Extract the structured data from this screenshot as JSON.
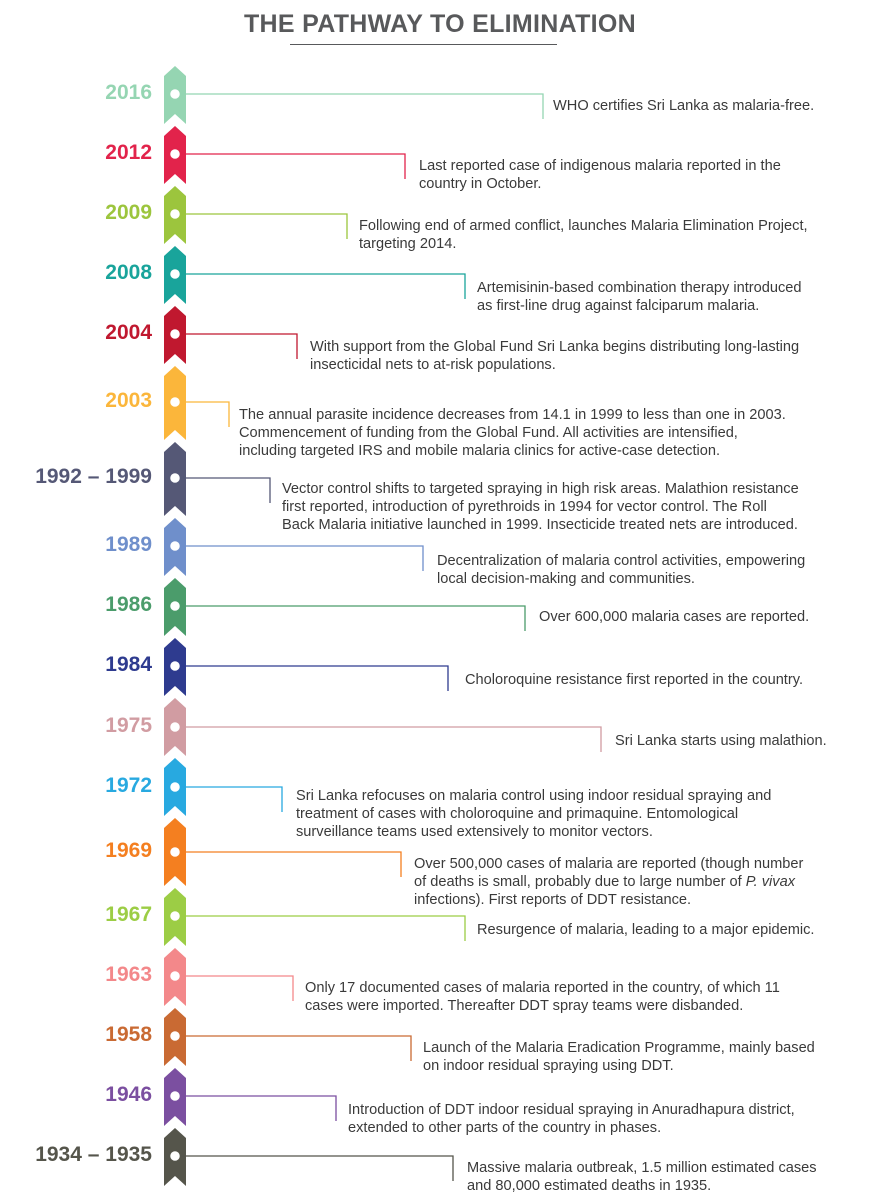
{
  "title": "THE PATHWAY TO ELIMINATION",
  "events": [
    {
      "year": "2016",
      "color": "#95d5b2",
      "lines": [
        "WHO certifies Sri Lanka as malaria-free."
      ]
    },
    {
      "year": "2012",
      "color": "#e2234b",
      "lines": [
        "Last reported case of indigenous malaria reported in the",
        "country in October."
      ]
    },
    {
      "year": "2009",
      "color": "#9cc53d",
      "lines": [
        "Following end of armed conflict, launches Malaria Elimination Project,",
        "targeting 2014."
      ]
    },
    {
      "year": "2008",
      "color": "#19a49b",
      "lines": [
        "Artemisinin-based combination therapy introduced",
        "as first-line drug against falciparum malaria."
      ]
    },
    {
      "year": "2004",
      "color": "#c0182f",
      "lines": [
        "With support from the Global Fund Sri Lanka begins distributing long-lasting",
        "insecticidal nets to at-risk populations."
      ]
    },
    {
      "year": "2003",
      "color": "#fbb63b",
      "lines": [
        "The annual parasite incidence decreases from 14.1 in 1999 to less than one in 2003.",
        "Commencement of funding from the Global Fund. All activities are intensified,",
        "including targeted IRS and mobile malaria clinics for active-case detection."
      ]
    },
    {
      "year": "1992 – 1999",
      "color": "#555876",
      "lines": [
        "Vector control shifts to targeted spraying in high risk areas. Malathion resistance",
        "first reported, introduction of pyrethroids in 1994 for vector control. The Roll",
        "Back Malaria initiative launched in 1999. Insecticide treated nets are introduced."
      ]
    },
    {
      "year": "1989",
      "color": "#6f8fcb",
      "lines": [
        "Decentralization of malaria control activities, empowering",
        "local decision-making and communities."
      ]
    },
    {
      "year": "1986",
      "color": "#4b9c6b",
      "lines": [
        "Over 600,000 malaria cases are reported."
      ]
    },
    {
      "year": "1984",
      "color": "#2e3b8f",
      "lines": [
        "Choloroquine resistance first reported in the country."
      ]
    },
    {
      "year": "1975",
      "color": "#d19ca2",
      "lines": [
        "Sri Lanka starts using malathion."
      ]
    },
    {
      "year": "1972",
      "color": "#28a9e0",
      "lines": [
        "Sri Lanka refocuses on malaria control using indoor residual spraying and",
        "treatment of cases with choloroquine and primaquine. Entomological",
        "surveillance teams used extensively to monitor vectors."
      ]
    },
    {
      "year": "1969",
      "color": "#f47f20",
      "lines": [
        "Over 500,000 cases of malaria are reported (though number",
        "of deaths is small, probably due to large number of {{P. vivax}}",
        "infections). First reports of DDT resistance."
      ]
    },
    {
      "year": "1967",
      "color": "#9ccd45",
      "lines": [
        "Resurgence of malaria, leading to a major epidemic."
      ]
    },
    {
      "year": "1963",
      "color": "#f3888a",
      "lines": [
        "Only 17 documented cases of malaria reported in the country, of which 11",
        "cases were imported. Thereafter DDT spray teams were disbanded."
      ]
    },
    {
      "year": "1958",
      "color": "#c96a33",
      "lines": [
        "Launch of the Malaria Eradication Programme, mainly based",
        "on indoor residual spraying using DDT."
      ]
    },
    {
      "year": "1946",
      "color": "#7b4fa0",
      "lines": [
        "Introduction of DDT indoor residual spraying in Anuradhapura district,",
        "extended to other parts of the country in phases."
      ]
    },
    {
      "year": "1934 – 1935",
      "color": "#55554b",
      "lines": [
        "Massive malaria outbreak, 1.5 million estimated cases",
        "and 80,000 estimated deaths in 1935."
      ]
    }
  ]
}
